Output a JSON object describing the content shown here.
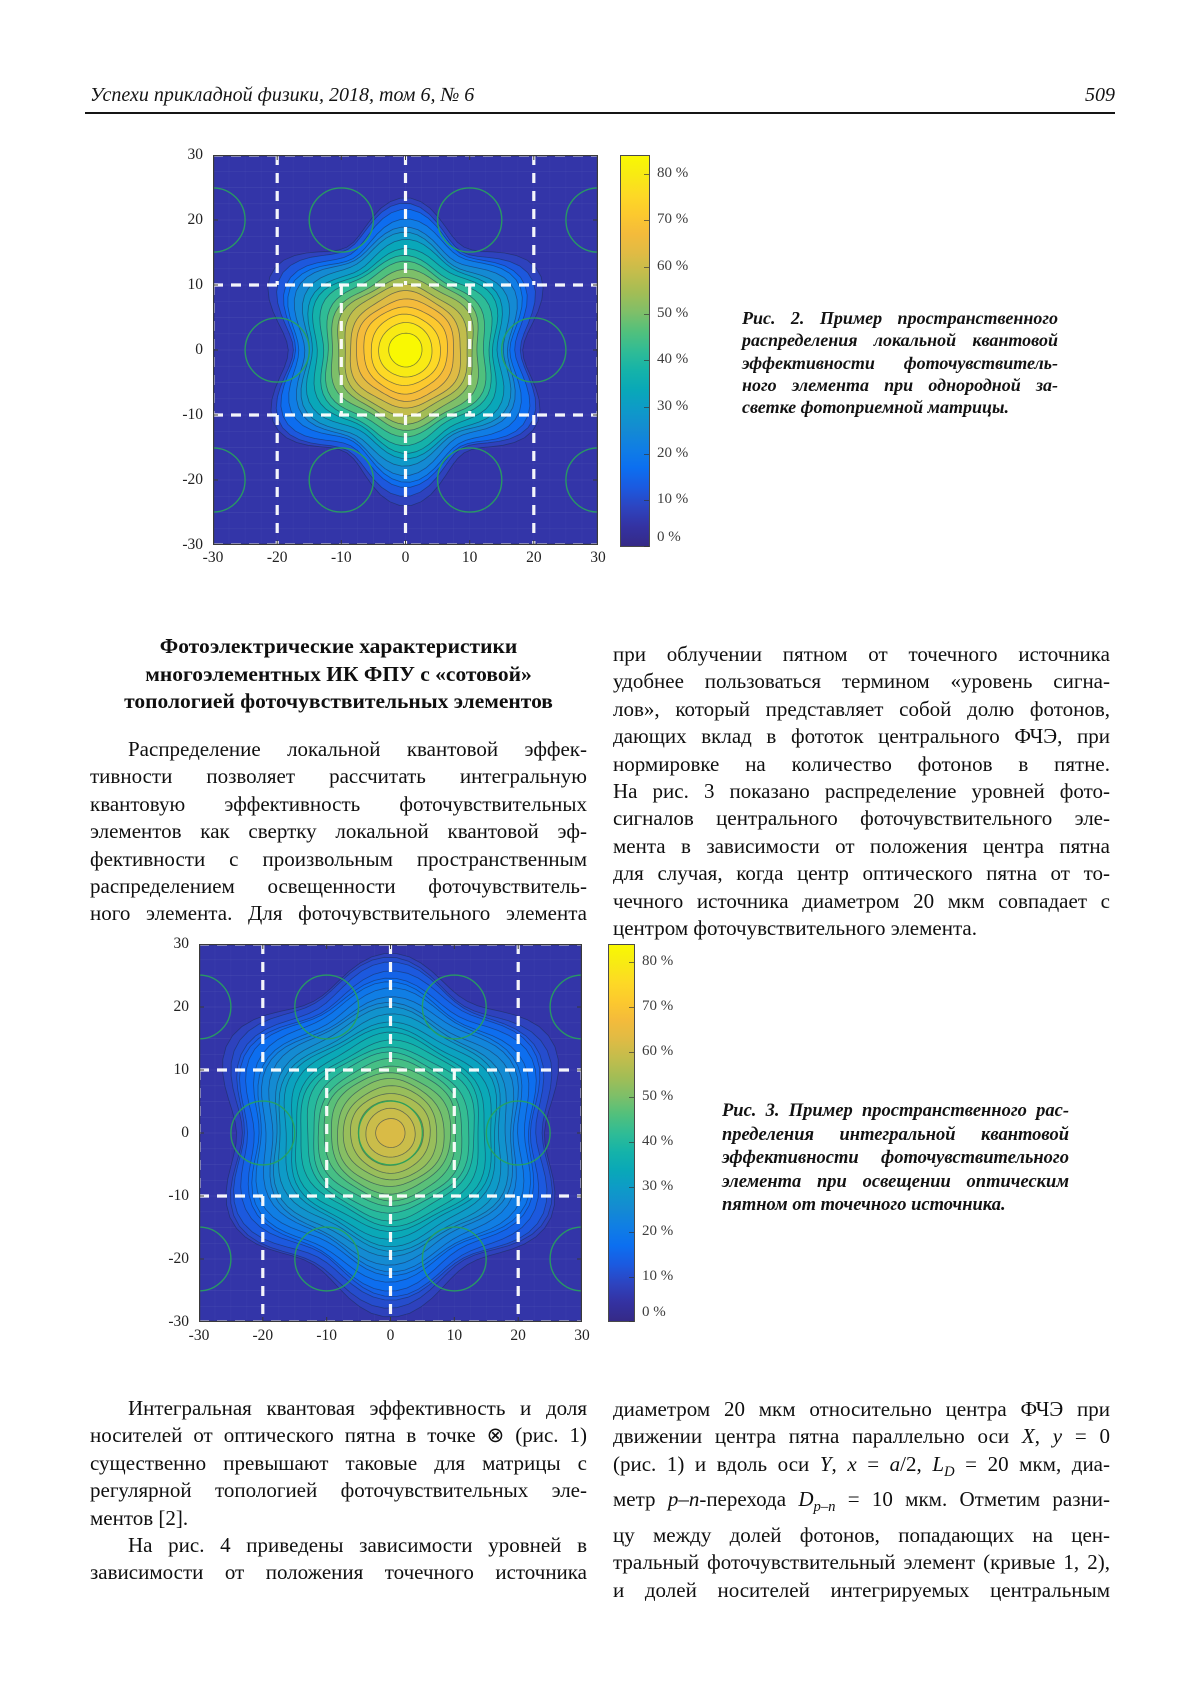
{
  "header": {
    "journal": "Успехи прикладной физики, 2018, том 6, № 6",
    "page_number": "509"
  },
  "section": {
    "heading_lines": [
      "Фотоэлектрические характеристики",
      "многоэлементных ИК ФПУ с «сотовой»",
      "топологией фоточувствительных элементов"
    ],
    "left_paragraphs": [
      {
        "indent": true,
        "justify_all": true,
        "lines": [
          "Распределение локальной квантовой эффек-",
          "тивности позволяет рассчитать интегральную",
          "квантовую эффективность фоточувствительных",
          "элементов как свертку локальной квантовой эф-",
          "фективности с произвольным пространственным",
          "распределением освещенности фоточувствитель-",
          "ного элемента. Для фоточувствительного элемента"
        ]
      }
    ],
    "right_paragraphs": [
      {
        "indent": false,
        "justify_all": false,
        "lines": [
          "при облучении пятном от точечного источника",
          "удобнее пользоваться термином «уровень сигна-",
          "лов», который представляет собой долю фотонов,",
          "дающих вклад в фототок центрального ФЧЭ, при",
          "нормировке на количество фотонов в пятне.",
          "На рис. 3 показано распределение уровней фото-",
          "сигналов центрального фоточувствительного эле-",
          "мента в зависимости от положения центра пятна",
          "для случая, когда центр оптического пятна от то-",
          "чечного источника диаметром 20 мкм совпадает с",
          "центром фоточувствительного элемента."
        ]
      }
    ]
  },
  "bottom": {
    "left_paragraphs": [
      {
        "indent": true,
        "justify_all": false,
        "lines": [
          "Интегральная квантовая эффективность и доля",
          "носителей от оптического пятна в точке ⊗ (рис. 1)",
          "существенно превышают таковые для матрицы с",
          "регулярной топологией фоточувствительных эле-",
          "ментов [2]."
        ]
      },
      {
        "indent": true,
        "justify_all": true,
        "lines": [
          "На рис. 4 приведены зависимости уровней в",
          "зависимости от положения точечного источника"
        ]
      }
    ],
    "right_paragraphs": [
      {
        "indent": false,
        "justify_all": true,
        "lines": [
          "диаметром 20 мкм относительно центра ФЧЭ при",
          "движении центра пятна параллельно оси X, y = 0",
          "(рис. 1) и вдоль оси Y, x = a/2, L_D = 20 мкм, диа-",
          "метр p–n-перехода D_p–n = 10 мкм. Отметим разни-",
          "цу между долей фотонов, попадающих на цен-",
          "тральный фоточувствительный элемент (кривые 1, 2),",
          "и долей носителей интегрируемых центральным"
        ]
      }
    ]
  },
  "figures": [
    {
      "number": "Рис. 2",
      "caption_lines": [
        "Рис. 2. Пример пространственного",
        "распределения локальной квантовой",
        "эффективности фоточувствитель-",
        "ного элемента при однородной за-",
        "светке фотоприемной матрицы."
      ]
    },
    {
      "number": "Рис. 3",
      "caption_lines": [
        "Рис. 3. Пример пространственного рас-",
        "пределения интегральной квантовой",
        "эффективности фоточувствительного",
        "элемента при освещении оптическим",
        "пятном от точечного источника."
      ]
    }
  ],
  "chart_data": [
    {
      "type": "heatmap",
      "figure_ref": "Рис. 2",
      "x_range": [
        -30,
        30
      ],
      "y_range": [
        -30,
        30
      ],
      "x_ticks": [
        -30,
        -20,
        -10,
        0,
        10,
        20,
        30
      ],
      "y_ticks": [
        30,
        20,
        10,
        0,
        -10,
        -20,
        -30
      ],
      "values_unit": "%",
      "colorbar_tick_values": [
        80,
        70,
        60,
        50,
        40,
        30,
        20,
        10,
        0
      ],
      "colorbar_tick_labels": [
        "80 %",
        "70 %",
        "60 %",
        "50 %",
        "40 %",
        "30 %",
        "20 %",
        "10 %",
        "0 %"
      ],
      "colorbar_max": 84,
      "background_percent": 5,
      "contour_min_percent": 8,
      "peak_percent": 84,
      "peak_center": [
        0,
        0
      ],
      "n_levels": 19,
      "outer_radius": 21,
      "inner_radius": 2.6,
      "lobe_amplitude": 0.13,
      "hide_center_circle": true,
      "cell_grid": {
        "h_lines": [
          30,
          10,
          -10,
          -30
        ],
        "v_segments": [
          {
            "x": [
              -20,
              0,
              20
            ],
            "y_range": [
              10,
              30
            ]
          },
          {
            "x": [
              -20,
              0,
              20
            ],
            "y_range": [
              -30,
              -10
            ]
          },
          {
            "x": [
              -10,
              10
            ],
            "y_range": [
              -10,
              10
            ]
          },
          {
            "x": [
              -30,
              30
            ],
            "y_range": [
              -10,
              10
            ]
          }
        ]
      },
      "junction_circles": {
        "radius": 5,
        "centers": [
          [
            -30,
            20
          ],
          [
            -10,
            20
          ],
          [
            10,
            20
          ],
          [
            30,
            20
          ],
          [
            -20,
            0
          ],
          [
            0,
            0
          ],
          [
            20,
            0
          ],
          [
            -30,
            -20
          ],
          [
            -10,
            -20
          ],
          [
            10,
            -20
          ],
          [
            30,
            -20
          ]
        ]
      },
      "colormap": "parula",
      "colormap_stops": [
        [
          0.0,
          "#352a87"
        ],
        [
          0.05,
          "#3432a2"
        ],
        [
          0.1,
          "#2d44c0"
        ],
        [
          0.15,
          "#1b5ae0"
        ],
        [
          0.2,
          "#0c6ff0"
        ],
        [
          0.25,
          "#107ee4"
        ],
        [
          0.3,
          "#148bd2"
        ],
        [
          0.35,
          "#0e9ac8"
        ],
        [
          0.4,
          "#09a8b8"
        ],
        [
          0.45,
          "#15b3a9"
        ],
        [
          0.5,
          "#30bc95"
        ],
        [
          0.55,
          "#52c07c"
        ],
        [
          0.6,
          "#7fbf68"
        ],
        [
          0.65,
          "#a3bd55"
        ],
        [
          0.7,
          "#c3bd4c"
        ],
        [
          0.75,
          "#e0bb44"
        ],
        [
          0.8,
          "#f4bb3b"
        ],
        [
          0.85,
          "#fcc92e"
        ],
        [
          0.9,
          "#fdd925"
        ],
        [
          0.95,
          "#f8ea14"
        ],
        [
          1.0,
          "#f9f802"
        ]
      ]
    },
    {
      "type": "heatmap",
      "figure_ref": "Рис. 3",
      "x_range": [
        -30,
        30
      ],
      "y_range": [
        -30,
        30
      ],
      "x_ticks": [
        -30,
        -20,
        -10,
        0,
        10,
        20,
        30
      ],
      "y_ticks": [
        30,
        20,
        10,
        0,
        -10,
        -20,
        -30
      ],
      "values_unit": "%",
      "colorbar_tick_values": [
        80,
        70,
        60,
        50,
        40,
        30,
        20,
        10,
        0
      ],
      "colorbar_tick_labels": [
        "80 %",
        "70 %",
        "60 %",
        "50 %",
        "40 %",
        "30 %",
        "20 %",
        "10 %",
        "0 %"
      ],
      "colorbar_max": 84,
      "background_percent": 5,
      "contour_min_percent": 8,
      "peak_percent": 62,
      "peak_center": [
        0,
        0
      ],
      "n_levels": 26,
      "outer_radius": 26.5,
      "inner_radius": 2.3,
      "lobe_amplitude": 0.09,
      "hide_center_circle": false,
      "cell_grid": {
        "h_lines": [
          30,
          10,
          -10,
          -30
        ],
        "v_segments": [
          {
            "x": [
              -20,
              0,
              20
            ],
            "y_range": [
              10,
              30
            ]
          },
          {
            "x": [
              -20,
              0,
              20
            ],
            "y_range": [
              -30,
              -10
            ]
          },
          {
            "x": [
              -10,
              10
            ],
            "y_range": [
              -10,
              10
            ]
          },
          {
            "x": [
              -30,
              30
            ],
            "y_range": [
              -10,
              10
            ]
          }
        ]
      },
      "junction_circles": {
        "radius": 5,
        "centers": [
          [
            -30,
            20
          ],
          [
            -10,
            20
          ],
          [
            10,
            20
          ],
          [
            30,
            20
          ],
          [
            -20,
            0
          ],
          [
            0,
            0
          ],
          [
            20,
            0
          ],
          [
            -30,
            -20
          ],
          [
            -10,
            -20
          ],
          [
            10,
            -20
          ],
          [
            30,
            -20
          ]
        ]
      },
      "colormap": "parula",
      "colormap_stops": [
        [
          0.0,
          "#352a87"
        ],
        [
          0.05,
          "#3432a2"
        ],
        [
          0.1,
          "#2d44c0"
        ],
        [
          0.15,
          "#1b5ae0"
        ],
        [
          0.2,
          "#0c6ff0"
        ],
        [
          0.25,
          "#107ee4"
        ],
        [
          0.3,
          "#148bd2"
        ],
        [
          0.35,
          "#0e9ac8"
        ],
        [
          0.4,
          "#09a8b8"
        ],
        [
          0.45,
          "#15b3a9"
        ],
        [
          0.5,
          "#30bc95"
        ],
        [
          0.55,
          "#52c07c"
        ],
        [
          0.6,
          "#7fbf68"
        ],
        [
          0.65,
          "#a3bd55"
        ],
        [
          0.7,
          "#c3bd4c"
        ],
        [
          0.75,
          "#e0bb44"
        ],
        [
          0.8,
          "#f4bb3b"
        ],
        [
          0.85,
          "#fcc92e"
        ],
        [
          0.9,
          "#fdd925"
        ],
        [
          0.95,
          "#f8ea14"
        ],
        [
          1.0,
          "#f9f802"
        ]
      ]
    }
  ]
}
